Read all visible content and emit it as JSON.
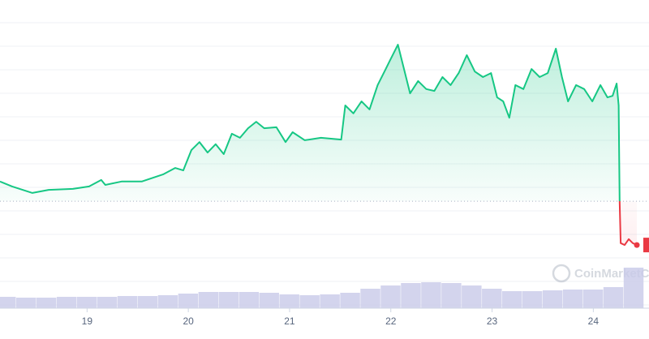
{
  "chart_data": {
    "type": "line",
    "x": [
      18.14,
      18.26,
      18.46,
      18.62,
      18.86,
      19.02,
      19.14,
      19.18,
      19.34,
      19.54,
      19.75,
      19.87,
      19.95,
      20.03,
      20.11,
      20.19,
      20.27,
      20.35,
      20.43,
      20.51,
      20.59,
      20.67,
      20.75,
      20.87,
      20.96,
      21.03,
      21.15,
      21.31,
      21.51,
      21.55,
      21.63,
      21.71,
      21.79,
      21.87,
      21.95,
      21.99,
      22.07,
      22.13,
      22.19,
      22.27,
      22.35,
      22.43,
      22.51,
      22.59,
      22.67,
      22.75,
      22.83,
      22.91,
      22.99,
      23.05,
      23.11,
      23.17,
      23.23,
      23.31,
      23.39,
      23.47,
      23.55,
      23.63,
      23.69,
      23.75,
      23.83,
      23.91,
      23.99,
      24.07,
      24.14,
      24.19,
      24.23,
      24.25,
      24.26,
      24.27,
      24.31,
      24.35,
      24.39,
      24.43
    ],
    "values": [
      41.1,
      39.5,
      37.4,
      38.4,
      38.7,
      39.5,
      41.6,
      40,
      41.1,
      41.1,
      43.4,
      45.5,
      44.7,
      51.3,
      53.9,
      50.5,
      53.2,
      50,
      56.6,
      55.3,
      58.4,
      60.5,
      58.4,
      58.7,
      53.9,
      57.1,
      54.5,
      55.3,
      54.7,
      65.8,
      63.2,
      67.1,
      64.5,
      72.4,
      77.6,
      80.3,
      85.5,
      77.6,
      69.7,
      73.7,
      71.1,
      70.5,
      75,
      72.4,
      76.3,
      82.1,
      76.8,
      75,
      76.3,
      68.4,
      67.1,
      61.8,
      72.4,
      71.1,
      77.6,
      75,
      76.3,
      84.2,
      75,
      67.1,
      72.4,
      71.1,
      67.1,
      72.4,
      68.4,
      68.9,
      72.9,
      65.8,
      34.7,
      21.1,
      20.5,
      22.4,
      21.1,
      20.5
    ],
    "baseline": 34.7,
    "color_up": "#16c784",
    "color_down": "#ea3943",
    "xlim": [
      18.14,
      24.55
    ],
    "xticks": [
      19,
      20,
      21,
      22,
      23,
      24
    ],
    "ylim": [
      0,
      100
    ],
    "volume": {
      "x": [
        18.2,
        18.4,
        18.6,
        18.8,
        19.0,
        19.2,
        19.4,
        19.6,
        19.8,
        20.0,
        20.2,
        20.4,
        20.6,
        20.8,
        21.0,
        21.2,
        21.4,
        21.6,
        21.8,
        22.0,
        22.2,
        22.4,
        22.6,
        22.8,
        23.0,
        23.2,
        23.4,
        23.6,
        23.8,
        24.0,
        24.2,
        24.4
      ],
      "values": [
        14,
        13,
        13,
        14,
        14,
        14,
        15,
        15,
        16,
        18,
        20,
        20,
        20,
        19,
        17,
        16,
        17,
        19,
        24,
        28,
        31,
        32,
        31,
        28,
        24,
        21,
        21,
        22,
        23,
        23,
        26,
        50
      ],
      "ylim": [
        0,
        100
      ],
      "color": "#c8c9e8"
    },
    "watermark": "CoinMarketCap"
  }
}
